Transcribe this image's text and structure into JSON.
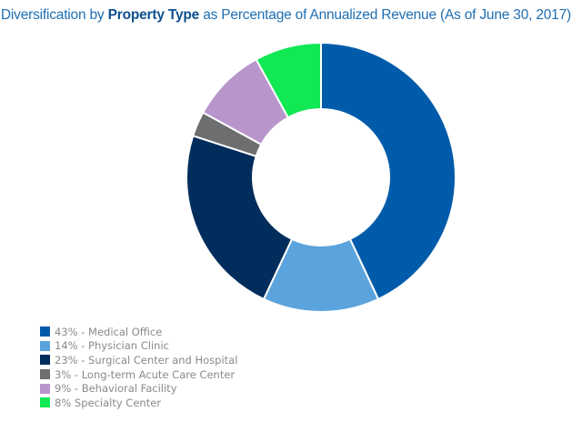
{
  "title": {
    "prefix": "Diversification by",
    "emphasis": "Property Type",
    "suffix": "as Percentage of Annualized Revenue (As of June 30, 2017)"
  },
  "chart_data": {
    "type": "pie",
    "variant": "donut",
    "title": "Diversification by Property Type as Percentage of Annualized Revenue (As of June 30, 2017)",
    "unit": "%",
    "legend_position": "bottom-left",
    "slices": [
      {
        "name": "Medical Office",
        "value": 43,
        "label": "43% - Medical Office",
        "color": "#005baa"
      },
      {
        "name": "Physician Clinic",
        "value": 14,
        "label": "14% - Physician Clinic",
        "color": "#5ba3dc"
      },
      {
        "name": "Surgical Center and Hospital",
        "value": 23,
        "label": "23% - Surgical Center and Hospital",
        "color": "#002d5b"
      },
      {
        "name": "Long-term Acute Care Center",
        "value": 3,
        "label": "3% - Long-term Acute Care Center",
        "color": "#6d6e70"
      },
      {
        "name": "Behavioral Facility",
        "value": 9,
        "label": "9% - Behavioral Facility",
        "color": "#b896cc"
      },
      {
        "name": "Specialty Center",
        "value": 8,
        "label": "8% Specialty Center",
        "color": "#11e854"
      }
    ]
  }
}
